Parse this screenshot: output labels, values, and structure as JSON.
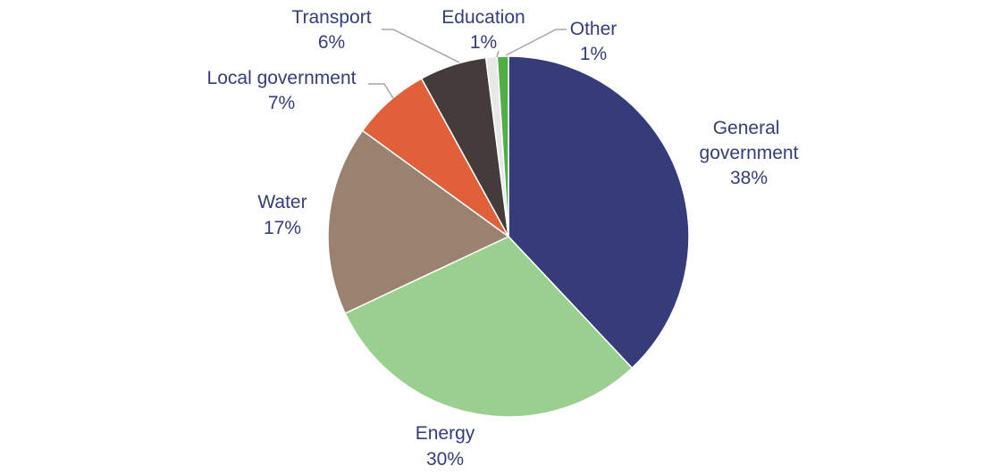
{
  "chart_data": {
    "type": "pie",
    "title": "",
    "slices": [
      {
        "label": "General government",
        "value": 38,
        "value_label": "38%",
        "color": "#363c7a"
      },
      {
        "label": "Energy",
        "value": 30,
        "value_label": "30%",
        "color": "#9acf8f"
      },
      {
        "label": "Water",
        "value": 17,
        "value_label": "17%",
        "color": "#9b8170"
      },
      {
        "label": "Local government",
        "value": 7,
        "value_label": "7%",
        "color": "#e0603a"
      },
      {
        "label": "Transport",
        "value": 6,
        "value_label": "6%",
        "color": "#433c3b"
      },
      {
        "label": "Education",
        "value": 1,
        "value_label": "1%",
        "color": "#e8e8e8"
      },
      {
        "label": "Other",
        "value": 1,
        "value_label": "1%",
        "color": "#4faf45"
      }
    ],
    "start": "top",
    "direction": "clockwise",
    "legend": "none",
    "label_color": "#353d79",
    "leader_color": "#a6a6a6"
  }
}
